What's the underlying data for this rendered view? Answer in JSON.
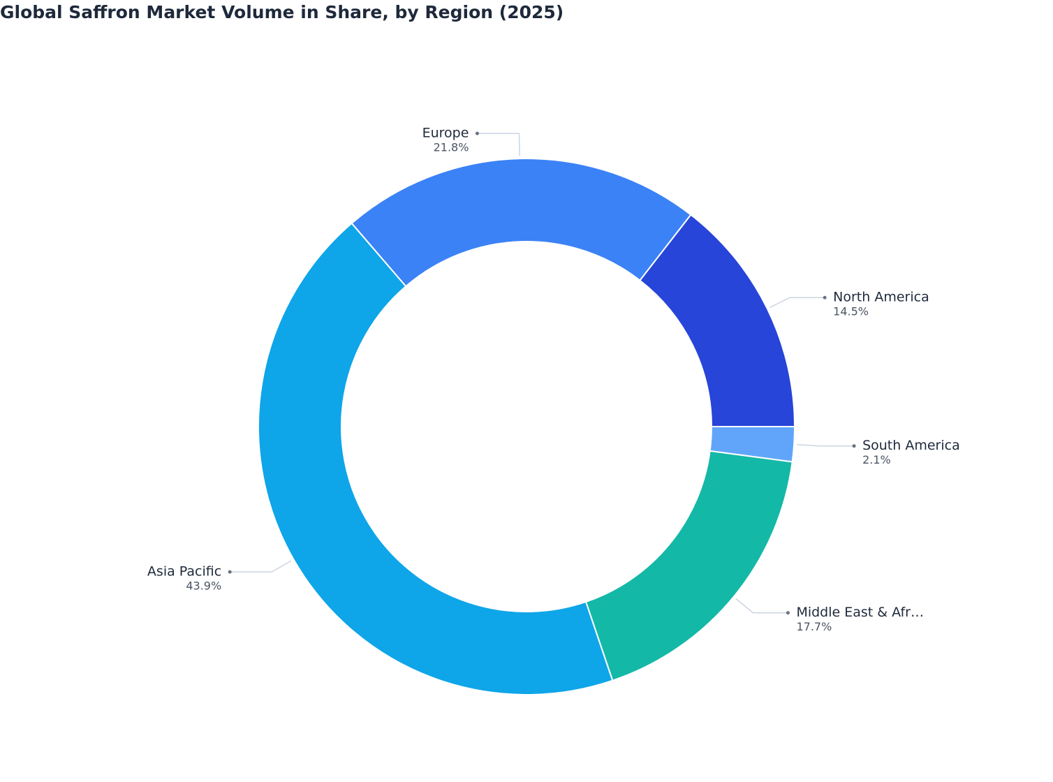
{
  "chart_data": {
    "type": "donut",
    "title": "Global Saffron Market Volume in Share, by Region (2025)",
    "categories": [
      "South America",
      "Middle East & Afr…",
      "Asia Pacific",
      "Europe",
      "North America"
    ],
    "values": [
      2.1,
      17.7,
      43.9,
      21.8,
      14.5
    ],
    "value_labels": [
      "2.1%",
      "17.7%",
      "43.9%",
      "21.8%",
      "14.5%"
    ],
    "colors": [
      "#60a5fa",
      "#14b8a6",
      "#0ea5e9",
      "#3b82f6",
      "#2745d8"
    ]
  }
}
